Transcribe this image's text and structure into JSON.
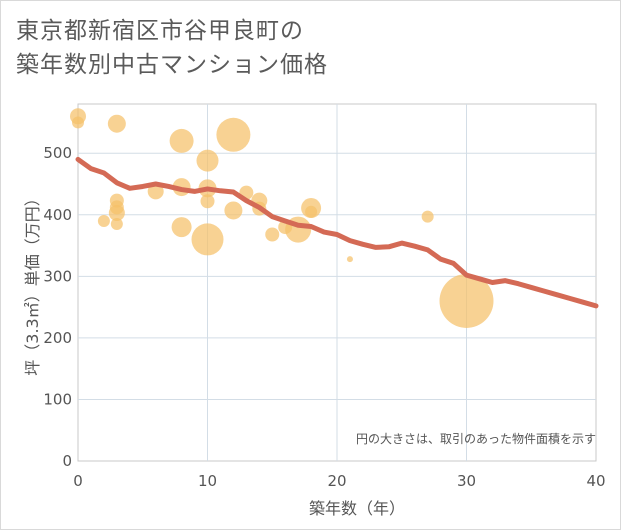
{
  "title_lines": [
    "東京都新宿区市谷甲良町の",
    "築年数別中古マンション価格"
  ],
  "chart_data": {
    "type": "scatter",
    "title": "東京都新宿区市谷甲良町の築年数別中古マンション価格",
    "xlabel": "築年数（年）",
    "ylabel": "坪（3.3㎡）単価（万円）",
    "xlim": [
      0,
      40
    ],
    "ylim": [
      0,
      580
    ],
    "x_ticks": [
      0,
      10,
      20,
      30,
      40
    ],
    "y_ticks": [
      0,
      100,
      200,
      300,
      400,
      500
    ],
    "grid": true,
    "note": "円の大きさは、取引のあった物件面積を示す",
    "bubble_color": "#f5c06a",
    "line_color": "#d46a55",
    "scatter": [
      {
        "x": 0,
        "y": 560,
        "s": 8
      },
      {
        "x": 0,
        "y": 550,
        "s": 6
      },
      {
        "x": 3,
        "y": 548,
        "s": 9
      },
      {
        "x": 2,
        "y": 390,
        "s": 6
      },
      {
        "x": 3,
        "y": 423,
        "s": 7
      },
      {
        "x": 3,
        "y": 412,
        "s": 7
      },
      {
        "x": 3,
        "y": 403,
        "s": 8
      },
      {
        "x": 3,
        "y": 385,
        "s": 6
      },
      {
        "x": 6,
        "y": 438,
        "s": 8
      },
      {
        "x": 8,
        "y": 520,
        "s": 12
      },
      {
        "x": 8,
        "y": 445,
        "s": 9
      },
      {
        "x": 8,
        "y": 380,
        "s": 10
      },
      {
        "x": 10,
        "y": 488,
        "s": 11
      },
      {
        "x": 10,
        "y": 443,
        "s": 9
      },
      {
        "x": 10,
        "y": 422,
        "s": 7
      },
      {
        "x": 10,
        "y": 360,
        "s": 16
      },
      {
        "x": 12,
        "y": 530,
        "s": 17
      },
      {
        "x": 12,
        "y": 407,
        "s": 9
      },
      {
        "x": 13,
        "y": 436,
        "s": 7
      },
      {
        "x": 14,
        "y": 423,
        "s": 8
      },
      {
        "x": 14,
        "y": 410,
        "s": 7
      },
      {
        "x": 15,
        "y": 368,
        "s": 7
      },
      {
        "x": 16,
        "y": 380,
        "s": 7
      },
      {
        "x": 17,
        "y": 376,
        "s": 13
      },
      {
        "x": 18,
        "y": 411,
        "s": 10
      },
      {
        "x": 18,
        "y": 405,
        "s": 6
      },
      {
        "x": 21,
        "y": 328,
        "s": 3
      },
      {
        "x": 27,
        "y": 397,
        "s": 6
      },
      {
        "x": 30,
        "y": 260,
        "s": 27
      }
    ],
    "trend": {
      "x": [
        0,
        1,
        2,
        3,
        4,
        5,
        6,
        7,
        8,
        9,
        10,
        11,
        12,
        13,
        14,
        15,
        16,
        17,
        18,
        19,
        20,
        21,
        22,
        23,
        24,
        25,
        26,
        27,
        28,
        29,
        30,
        31,
        32,
        33,
        34,
        35,
        36,
        37,
        38,
        39,
        40
      ],
      "y": [
        490,
        475,
        468,
        452,
        443,
        446,
        450,
        446,
        441,
        438,
        442,
        439,
        437,
        423,
        412,
        397,
        390,
        383,
        381,
        372,
        368,
        358,
        352,
        347,
        348,
        354,
        349,
        343,
        328,
        321,
        302,
        296,
        290,
        293,
        288,
        282,
        276,
        270,
        264,
        258,
        252
      ]
    }
  }
}
